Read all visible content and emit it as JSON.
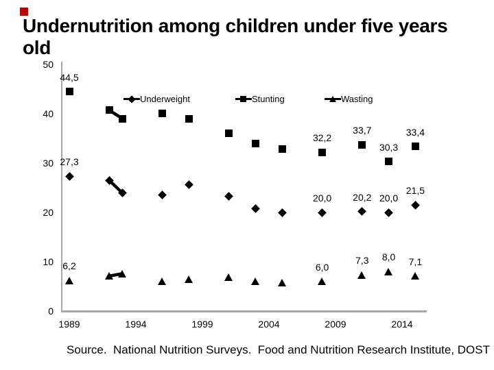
{
  "slide": {
    "title": "Undernutrition among children under five years old",
    "source_text": "Source.  National Nutrition Surveys.  Food and Nutrition Research Institute, DOST",
    "accent_square_color": "#c00000"
  },
  "chart_data": {
    "type": "scatter",
    "title": "Undernutrition among children under five years old",
    "xlabel": "",
    "ylabel": "",
    "ylim": [
      0,
      50
    ],
    "yticks": [
      50,
      40,
      30,
      20,
      10,
      0
    ],
    "xticks": [
      1989,
      1994,
      1999,
      2004,
      2009,
      2014
    ],
    "grid": false,
    "decimal_separator": ",",
    "legend_position": "top-inside",
    "connected_years": [
      1992,
      1993
    ],
    "series": [
      {
        "name": "Underweight",
        "marker": "diamond",
        "marker_icon": "diamond-marker-icon",
        "points": [
          {
            "year": 1989,
            "value": 27.3,
            "label": "27,3"
          },
          {
            "year": 1992,
            "value": 26.5,
            "label": null
          },
          {
            "year": 1993,
            "value": 23.9,
            "label": null
          },
          {
            "year": 1996,
            "value": 23.6,
            "label": null
          },
          {
            "year": 1998,
            "value": 25.6,
            "label": null
          },
          {
            "year": 2001,
            "value": 23.2,
            "label": null
          },
          {
            "year": 2003,
            "value": 20.7,
            "label": null
          },
          {
            "year": 2005,
            "value": 20.0,
            "label": null
          },
          {
            "year": 2008,
            "value": 20.0,
            "label": "20,0"
          },
          {
            "year": 2011,
            "value": 20.2,
            "label": "20,2"
          },
          {
            "year": 2013,
            "value": 20.0,
            "label": "20,0"
          },
          {
            "year": 2015,
            "value": 21.5,
            "label": "21,5"
          }
        ]
      },
      {
        "name": "Stunting",
        "marker": "square",
        "marker_icon": "square-marker-icon",
        "points": [
          {
            "year": 1989,
            "value": 44.5,
            "label": "44,5"
          },
          {
            "year": 1992,
            "value": 40.7,
            "label": null
          },
          {
            "year": 1993,
            "value": 39.0,
            "label": null
          },
          {
            "year": 1996,
            "value": 40.1,
            "label": null
          },
          {
            "year": 1998,
            "value": 39.0,
            "label": null
          },
          {
            "year": 2001,
            "value": 36.0,
            "label": null
          },
          {
            "year": 2003,
            "value": 33.9,
            "label": null
          },
          {
            "year": 2005,
            "value": 32.9,
            "label": null
          },
          {
            "year": 2008,
            "value": 32.2,
            "label": "32,2"
          },
          {
            "year": 2011,
            "value": 33.7,
            "label": "33,7"
          },
          {
            "year": 2013,
            "value": 30.3,
            "label": "30,3"
          },
          {
            "year": 2015,
            "value": 33.4,
            "label": "33,4"
          }
        ]
      },
      {
        "name": "Wasting",
        "marker": "triangle",
        "marker_icon": "triangle-marker-icon",
        "points": [
          {
            "year": 1989,
            "value": 6.2,
            "label": "6,2"
          },
          {
            "year": 1992,
            "value": 7.1,
            "label": null
          },
          {
            "year": 1993,
            "value": 7.6,
            "label": null
          },
          {
            "year": 1996,
            "value": 6.0,
            "label": null
          },
          {
            "year": 1998,
            "value": 6.4,
            "label": null
          },
          {
            "year": 2001,
            "value": 6.9,
            "label": null
          },
          {
            "year": 2003,
            "value": 6.0,
            "label": null
          },
          {
            "year": 2005,
            "value": 5.7,
            "label": null
          },
          {
            "year": 2008,
            "value": 6.0,
            "label": "6,0"
          },
          {
            "year": 2011,
            "value": 7.3,
            "label": "7,3"
          },
          {
            "year": 2013,
            "value": 8.0,
            "label": "8,0"
          },
          {
            "year": 2015,
            "value": 7.1,
            "label": "7,1"
          }
        ]
      }
    ]
  }
}
